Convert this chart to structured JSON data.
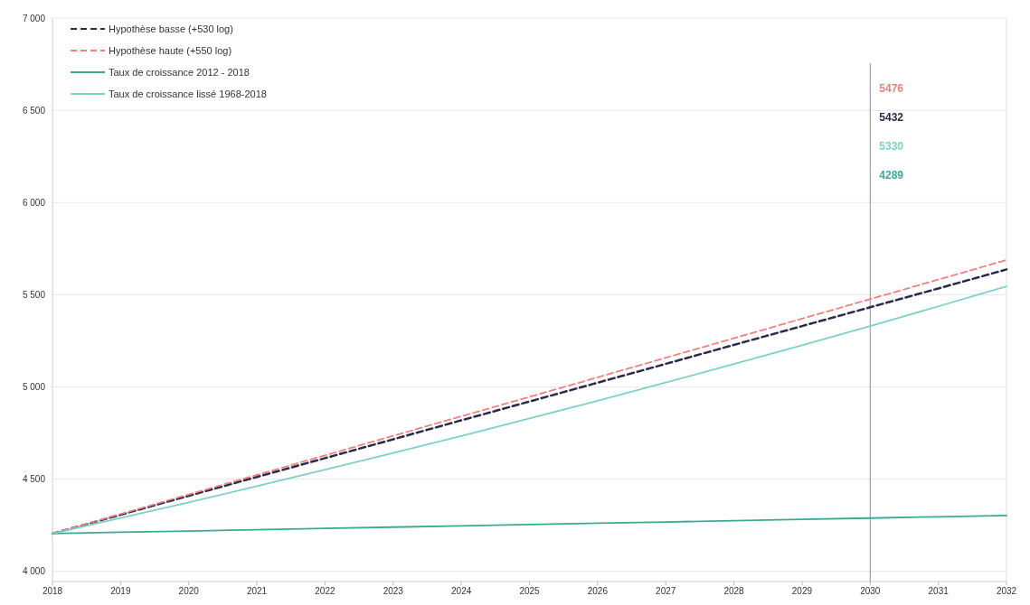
{
  "chart_data": {
    "type": "line",
    "x": [
      2018,
      2019,
      2020,
      2021,
      2022,
      2023,
      2024,
      2025,
      2026,
      2027,
      2028,
      2029,
      2030,
      2031,
      2032
    ],
    "xlim": [
      2018,
      2032
    ],
    "xticks": [
      2018,
      2019,
      2020,
      2021,
      2022,
      2023,
      2024,
      2025,
      2026,
      2027,
      2028,
      2029,
      2030,
      2031,
      2032
    ],
    "ylim": [
      3945,
      7000
    ],
    "yticks": [
      {
        "value": 4000,
        "label": "4 000"
      },
      {
        "value": 4500,
        "label": "4 500"
      },
      {
        "value": 5000,
        "label": "5 000"
      },
      {
        "value": 5500,
        "label": "5 500"
      },
      {
        "value": 6000,
        "label": "6 000"
      },
      {
        "value": 6500,
        "label": "6 500"
      },
      {
        "value": 7000,
        "label": "7 000"
      }
    ],
    "grid": "y",
    "annotations": [
      "5476",
      "5432",
      "5330",
      "4289"
    ],
    "legend": "top left",
    "marker": "none",
    "ref_lines": [
      {
        "axis": "x",
        "value": 2030,
        "color": "#a0a0a0"
      }
    ],
    "series": [
      {
        "name": "Hypothèse basse (+530 log)",
        "color": "#2b2a4a",
        "line_style": "dashed",
        "values": [
          4205,
          4307,
          4410,
          4512,
          4614,
          4716,
          4819,
          4921,
          5023,
          5125,
          5228,
          5330,
          5432,
          5534,
          5637
        ]
      },
      {
        "name": "Hypothèse haute (+550 log)",
        "color": "#f08080",
        "line_style": "dashed",
        "values": [
          4205,
          4311,
          4417,
          4523,
          4629,
          4735,
          4841,
          4946,
          5052,
          5158,
          5264,
          5370,
          5476,
          5582,
          5688
        ]
      },
      {
        "name": "Taux de croissance 2012 - 2018",
        "color": "#3aaa94",
        "line_style": "solid",
        "values": [
          4205,
          4212,
          4219,
          4226,
          4233,
          4240,
          4247,
          4254,
          4261,
          4268,
          4275,
          4282,
          4289,
          4296,
          4303
        ]
      },
      {
        "name": "Taux de croissance lissé 1968-2018",
        "color": "#7fd0c4",
        "line_style": "solid",
        "values": [
          4205,
          4289,
          4374,
          4462,
          4551,
          4642,
          4734,
          4829,
          4925,
          5024,
          5124,
          5226,
          5330,
          5437,
          5545
        ]
      }
    ]
  }
}
